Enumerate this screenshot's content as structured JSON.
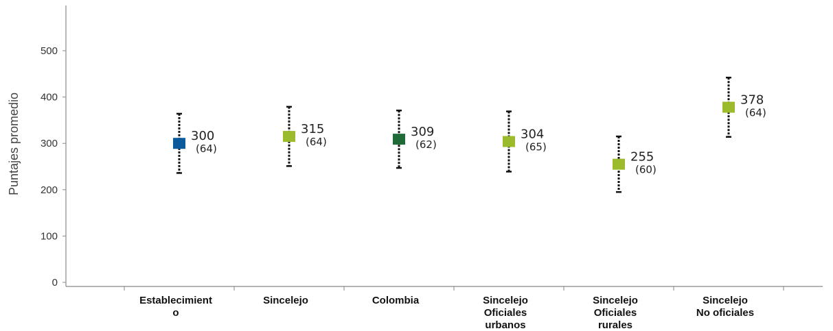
{
  "chart_data": {
    "type": "scatter",
    "title": "",
    "xlabel": "",
    "ylabel": "Puntajes promedio",
    "ylim": [
      0,
      550
    ],
    "yticks": [
      0,
      100,
      200,
      300,
      400,
      500
    ],
    "grid": false,
    "legend": "none",
    "categories": [
      [
        "Establecimient",
        "o"
      ],
      [
        "Sincelejo"
      ],
      [
        "Colombia"
      ],
      [
        "Sincelejo",
        "Oficiales",
        "urbanos"
      ],
      [
        "Sincelejo",
        "Oficiales",
        "rurales"
      ],
      [
        "Sincelejo",
        "No oficiales"
      ]
    ],
    "points": [
      {
        "mean": 300,
        "sd": 64,
        "value_label": "300",
        "sd_label": "(64)",
        "color": "#0a5a9c"
      },
      {
        "mean": 315,
        "sd": 64,
        "value_label": "315",
        "sd_label": "(64)",
        "color": "#9bbb2c"
      },
      {
        "mean": 309,
        "sd": 62,
        "value_label": "309",
        "sd_label": "(62)",
        "color": "#1e6b37"
      },
      {
        "mean": 304,
        "sd": 65,
        "value_label": "304",
        "sd_label": "(65)",
        "color": "#9bbb2c"
      },
      {
        "mean": 255,
        "sd": 60,
        "value_label": "255",
        "sd_label": "(60)",
        "color": "#9bbb2c"
      },
      {
        "mean": 378,
        "sd": 64,
        "value_label": "378",
        "sd_label": "(64)",
        "color": "#9bbb2c"
      }
    ]
  }
}
